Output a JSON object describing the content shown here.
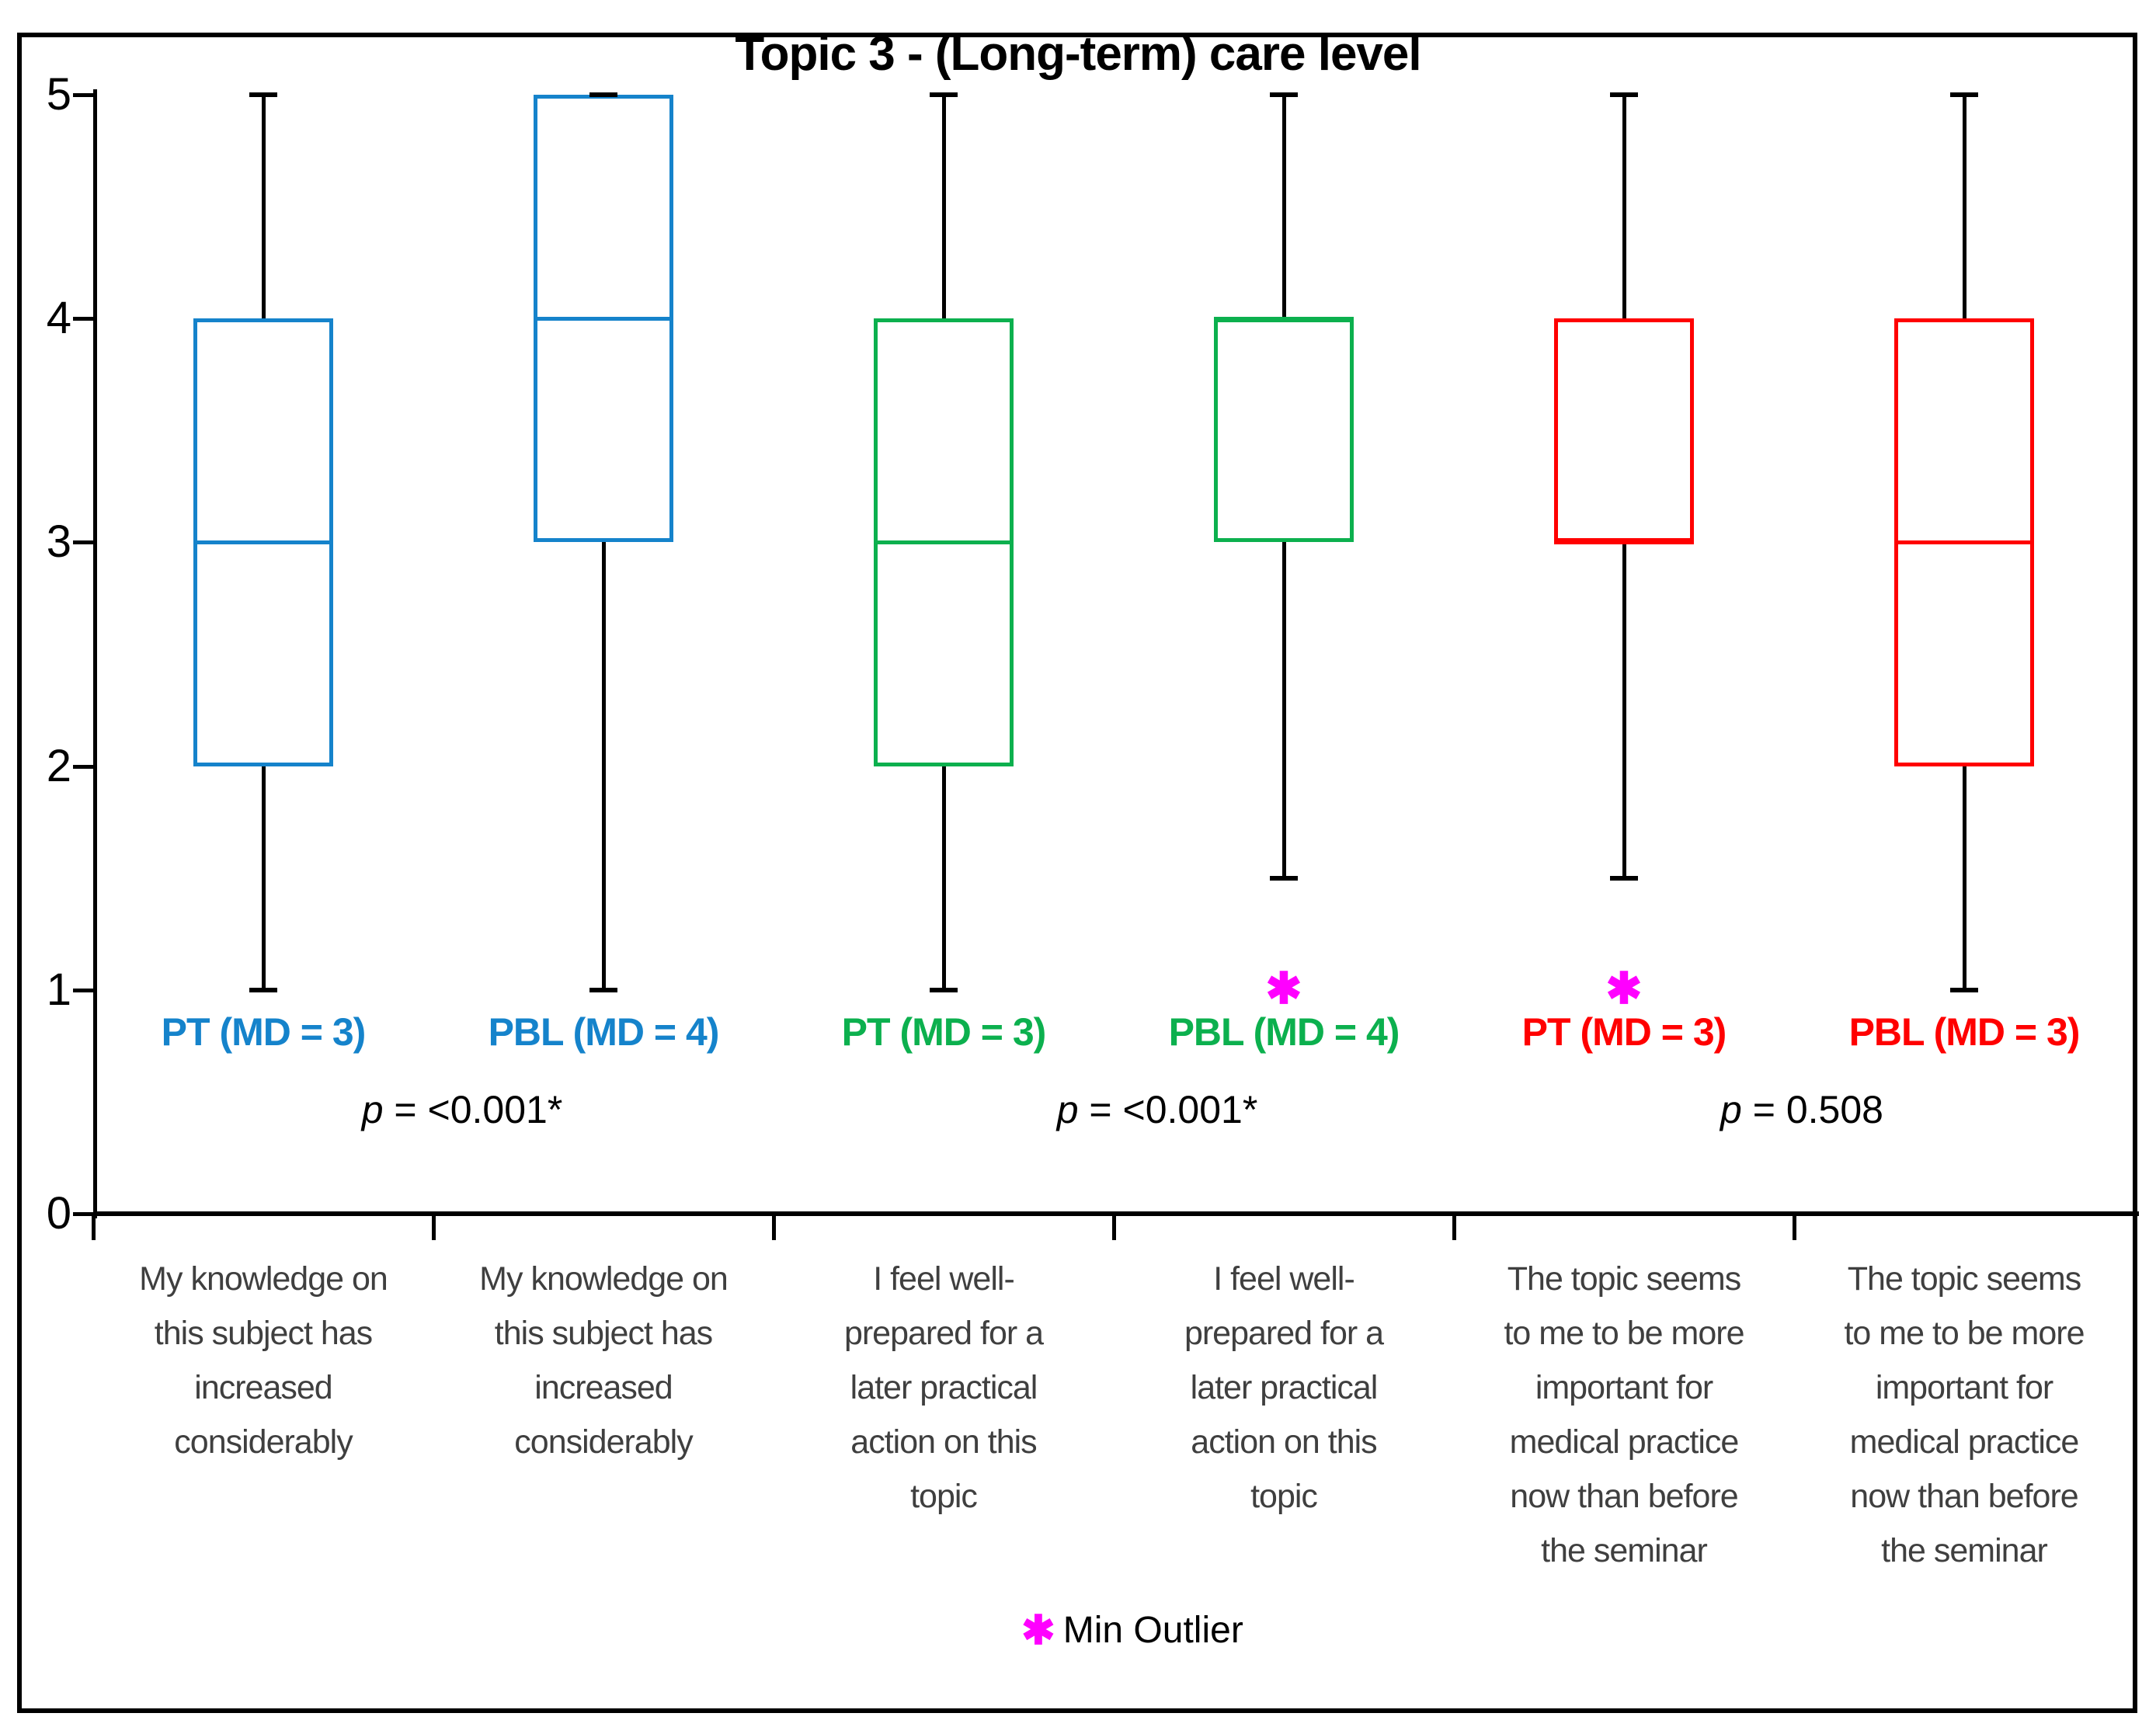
{
  "chart_data": {
    "type": "boxplot",
    "title": "Topic 3 - (Long-term) care level",
    "ylim": [
      0,
      5
    ],
    "yticks": [
      0,
      1,
      2,
      3,
      4,
      5
    ],
    "grid": false,
    "legend": {
      "marker": "✱",
      "marker_color": "#FF00FF",
      "text": "Min Outlier"
    },
    "boxes": [
      {
        "label": "PT (MD = 3)",
        "color": "#1583CB",
        "whisker_min": 1,
        "q1": 2,
        "median": 3,
        "q3": 4,
        "whisker_max": 5,
        "outlier_min": null,
        "category": "My knowledge on this subject has increased considerably",
        "category_lines": [
          "My knowledge on",
          "this subject has",
          "increased",
          "considerably"
        ]
      },
      {
        "label": "PBL (MD = 4)",
        "color": "#1583CB",
        "whisker_min": 1,
        "q1": 3,
        "median": 4,
        "q3": 5,
        "whisker_max": 5,
        "outlier_min": null,
        "category": "My knowledge on this subject has increased considerably",
        "category_lines": [
          "My knowledge on",
          "this subject has",
          "increased",
          "considerably"
        ]
      },
      {
        "label": "PT (MD = 3)",
        "color": "#0CB04E",
        "whisker_min": 1,
        "q1": 2,
        "median": 3,
        "q3": 4,
        "whisker_max": 5,
        "outlier_min": null,
        "category": "I feel well-prepared for a later practical action on this topic",
        "category_lines": [
          "I feel well-",
          "prepared for a",
          "later practical",
          "action on this",
          "topic"
        ]
      },
      {
        "label": "PBL (MD = 4)",
        "color": "#0CB04E",
        "whisker_min": 1.5,
        "q1": 3,
        "median": 4,
        "q3": 4,
        "whisker_max": 5,
        "outlier_min": 1,
        "category": "I feel well-prepared for a later practical action on this topic",
        "category_lines": [
          "I feel well-",
          "prepared for a",
          "later practical",
          "action on this",
          "topic"
        ]
      },
      {
        "label": "PT (MD = 3)",
        "color": "#FF0000",
        "whisker_min": 1.5,
        "q1": 3,
        "median": 3,
        "q3": 4,
        "whisker_max": 5,
        "outlier_min": 1,
        "category": "The topic seems to me to be more important for medical practice now than before the seminar",
        "category_lines": [
          "The topic seems",
          "to me to be more",
          "important for",
          "medical practice",
          "now than before",
          "the seminar"
        ]
      },
      {
        "label": "PBL (MD = 3)",
        "color": "#FF0000",
        "whisker_min": 1,
        "q1": 2,
        "median": 3,
        "q3": 4,
        "whisker_max": 5,
        "outlier_min": null,
        "category": "The topic seems to me to be more important for medical practice now than before the seminar",
        "category_lines": [
          "The topic seems",
          "to me to be more",
          "important for",
          "medical practice",
          "now than before",
          "the seminar"
        ]
      }
    ],
    "pairs": [
      {
        "p_var": "p",
        "p_text": "= <0.001*"
      },
      {
        "p_var": "p",
        "p_text": "= <0.001*"
      },
      {
        "p_var": "p",
        "p_text": "= 0.508"
      }
    ]
  },
  "colors": {
    "blue": "#1583CB",
    "green": "#0CB04E",
    "red": "#FF0000",
    "magenta": "#FF00FF",
    "axis": "#000000",
    "category_text": "#3F3F3F"
  }
}
